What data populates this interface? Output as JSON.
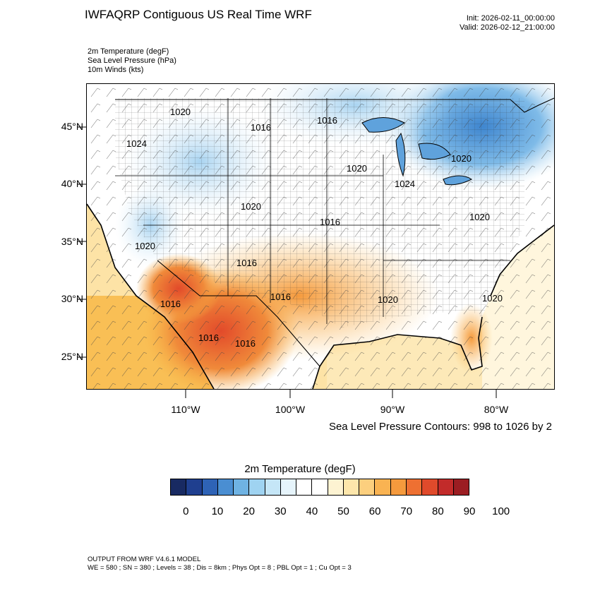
{
  "header": {
    "title": "IWFAQRP Contiguous US Real Time WRF",
    "init": "Init: 2026-02-11_00:00:00",
    "valid": "Valid: 2026-02-12_21:00:00"
  },
  "fields": [
    "2m Temperature   (degF)",
    "Sea Level Pressure   (hPa)",
    "10m Winds   (kts)"
  ],
  "map": {
    "lat_labels": [
      "45°N",
      "40°N",
      "35°N",
      "30°N",
      "25°N"
    ],
    "lon_labels": [
      "110°W",
      "100°W",
      "90°W",
      "80°W"
    ],
    "pressure_labels": [
      "1020",
      "1016",
      "1016",
      "1024",
      "1020",
      "1024",
      "1020",
      "1020",
      "1020",
      "1020",
      "1016",
      "1016",
      "1016",
      "1020",
      "1020",
      "1016",
      "1016",
      "1016"
    ],
    "colors": {
      "cold": "#4f9bd8",
      "cool": "#bfe0f5",
      "neutral": "#ffffff",
      "mild": "#fde7b5",
      "warm": "#f8b043",
      "hot": "#e8512c",
      "ocean_cool": "#fbd98b",
      "ocean_warm": "#f7b33f"
    }
  },
  "contour_note": "Sea Level Pressure Contours: 998 to 1026 by 2",
  "colorbar": {
    "title": "2m Temperature  (degF)",
    "colors": [
      "#182a62",
      "#1f3f8f",
      "#2e63b6",
      "#4a8ed2",
      "#6fb3e3",
      "#9fd3f1",
      "#c5e6f7",
      "#e6f4fb",
      "#ffffff",
      "#ffffff",
      "#fdf3d2",
      "#fde6ab",
      "#fccf7e",
      "#f9b352",
      "#f59a3d",
      "#ee7032",
      "#e04a2b",
      "#c22b2a",
      "#9b1d22"
    ],
    "ticks": [
      "0",
      "10",
      "20",
      "30",
      "40",
      "50",
      "60",
      "70",
      "80",
      "90",
      "100"
    ]
  },
  "footer": {
    "line1": "OUTPUT FROM WRF V4.6.1 MODEL",
    "line2": "WE = 580 ; SN = 380 ; Levels = 38 ; Dis = 8km ; Phys Opt = 8 ; PBL Opt = 1 ; Cu Opt = 3"
  }
}
